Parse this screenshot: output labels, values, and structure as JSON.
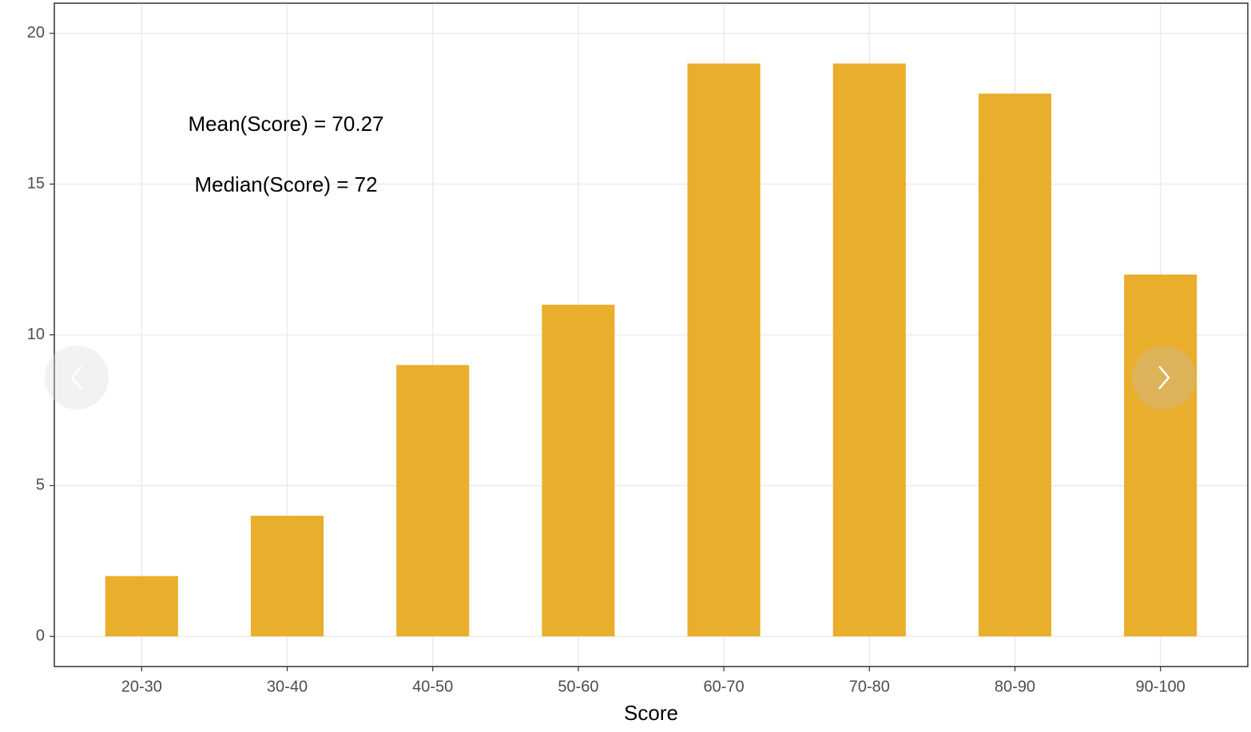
{
  "chart_data": {
    "type": "bar",
    "categories": [
      "20-30",
      "30-40",
      "40-50",
      "50-60",
      "60-70",
      "70-80",
      "80-90",
      "90-100"
    ],
    "values": [
      2,
      4,
      9,
      11,
      19,
      19,
      18,
      12
    ],
    "color": "#e9ae2b",
    "xlabel": "Score",
    "annotations": [
      "Mean(Score) = 70.27",
      "Median(Score) = 72"
    ],
    "ylim": [
      -1,
      21
    ],
    "yticks": [
      0,
      5,
      10,
      15,
      20
    ],
    "grid": true
  }
}
